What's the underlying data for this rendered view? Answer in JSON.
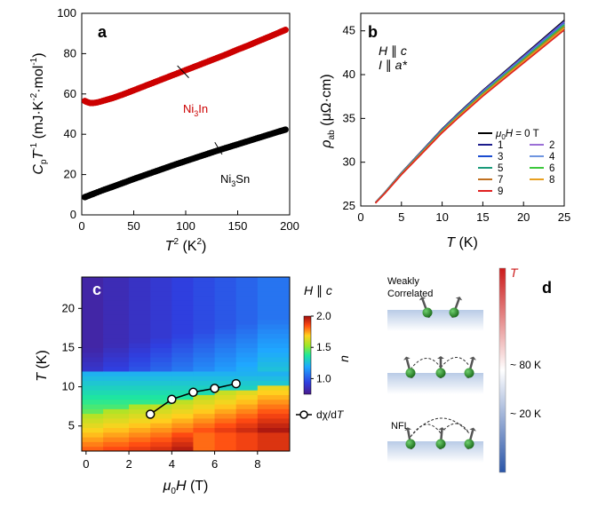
{
  "chart_data": [
    {
      "panel": "a",
      "type": "scatter",
      "xlabel": "T^2 (K^2)",
      "ylabel": "C_p T^-1 (mJ·K^-2·mol^-1)",
      "xlim": [
        0,
        200
      ],
      "ylim": [
        0,
        100
      ],
      "xticks": [
        "0",
        "50",
        "100",
        "150",
        "200"
      ],
      "yticks": [
        "0",
        "20",
        "40",
        "60",
        "80",
        "100"
      ],
      "series": [
        {
          "name": "Ni3In",
          "color": "#cc0000",
          "x": [
            3,
            5,
            8,
            11,
            15,
            20,
            30,
            40,
            50,
            60,
            70,
            80,
            90,
            100,
            110,
            120,
            130,
            140,
            150,
            160,
            170,
            180,
            190,
            196
          ],
          "y": [
            56.5,
            56,
            55.5,
            55.5,
            55.8,
            56.5,
            58,
            59.8,
            61.8,
            63.8,
            65.8,
            67.8,
            69.8,
            71.8,
            73.8,
            75.8,
            77.8,
            79.8,
            82,
            84,
            86.2,
            88.3,
            90.5,
            91.8
          ]
        },
        {
          "name": "Ni3Sn",
          "color": "#000000",
          "x": [
            3,
            5,
            8,
            11,
            15,
            20,
            30,
            40,
            50,
            60,
            70,
            80,
            90,
            100,
            110,
            120,
            130,
            140,
            150,
            160,
            170,
            180,
            190,
            196
          ],
          "y": [
            8.8,
            9.2,
            9.8,
            10.4,
            11.2,
            12.2,
            14,
            15.9,
            17.8,
            19.6,
            21.4,
            23.2,
            25,
            26.7,
            28.4,
            30.1,
            31.8,
            33.4,
            35,
            36.6,
            38.2,
            39.8,
            41.4,
            42.3
          ]
        }
      ],
      "labels": {
        "panel": "a",
        "ni3in": [
          "Ni",
          "3",
          "In"
        ],
        "ni3sn": [
          "Ni",
          "3",
          "Sn"
        ]
      }
    },
    {
      "panel": "b",
      "type": "line",
      "xlabel": "T (K)",
      "ylabel": "ρ_ab (μΩ·cm)",
      "xlim": [
        0,
        25
      ],
      "ylim": [
        25,
        47
      ],
      "xticks": [
        "0",
        "5",
        "10",
        "15",
        "20",
        "25"
      ],
      "yticks": [
        "25",
        "30",
        "35",
        "40",
        "45"
      ],
      "annotation": [
        "H ∥ c",
        "I ∥ a*"
      ],
      "legend_title": "μ0H = 0 T",
      "series": [
        {
          "name": "0",
          "color": "#000000",
          "offset": 0
        },
        {
          "name": "1",
          "color": "#1c1c8c",
          "offset": -0.1
        },
        {
          "name": "2",
          "color": "#9b6fd6",
          "offset": -0.2
        },
        {
          "name": "3",
          "color": "#1a4bd0",
          "offset": -0.3
        },
        {
          "name": "4",
          "color": "#6f95e0",
          "offset": -0.4
        },
        {
          "name": "5",
          "color": "#1a9a7a",
          "offset": -0.5
        },
        {
          "name": "6",
          "color": "#3cc83c",
          "offset": -0.6
        },
        {
          "name": "7",
          "color": "#c07020",
          "offset": -0.75
        },
        {
          "name": "8",
          "color": "#e8a020",
          "offset": -0.9
        },
        {
          "name": "9",
          "color": "#e02020",
          "offset": -1.1
        }
      ],
      "base_curve": {
        "x": [
          1.8,
          3,
          5,
          8,
          10,
          12,
          15,
          18,
          20,
          22,
          25
        ],
        "y": [
          25.4,
          26.6,
          28.8,
          31.8,
          33.8,
          35.6,
          38.2,
          40.6,
          42.2,
          43.8,
          46.2
        ]
      },
      "labels": {
        "panel": "b"
      }
    },
    {
      "panel": "c",
      "type": "heatmap",
      "xlabel": "μ0H (T)",
      "ylabel": "T (K)",
      "xlim": [
        -0.2,
        9.5
      ],
      "ylim": [
        1.8,
        24
      ],
      "xticks": [
        "0",
        "2",
        "4",
        "6",
        "8"
      ],
      "yticks": [
        "5",
        "10",
        "15",
        "20"
      ],
      "colorbar": {
        "label": "n",
        "title": "H ∥ c",
        "range": [
          0.75,
          2.0
        ],
        "ticks": [
          "1.0",
          "1.5",
          "2.0"
        ]
      },
      "legend": "dχ/dT",
      "dchi_dT": {
        "x": [
          3,
          4,
          5,
          6,
          7
        ],
        "y": [
          6.5,
          8.4,
          9.3,
          9.8,
          10.4
        ]
      },
      "labels": {
        "panel": "c"
      }
    },
    {
      "panel": "d",
      "type": "diagram",
      "labels": {
        "panel": "d",
        "weakly": "Weakly",
        "correlated": "Correlated",
        "nfl": "NFL",
        "t": "T",
        "t80": "~ 80 K",
        "t20": "~ 20 K"
      }
    }
  ]
}
